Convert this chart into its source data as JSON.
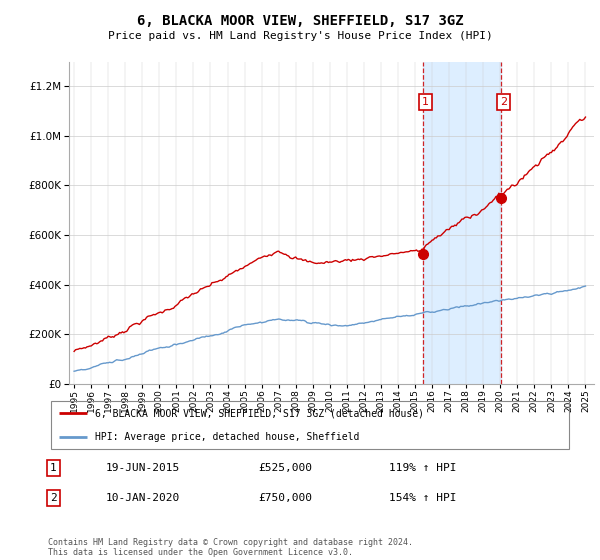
{
  "title": "6, BLACKA MOOR VIEW, SHEFFIELD, S17 3GZ",
  "subtitle": "Price paid vs. HM Land Registry's House Price Index (HPI)",
  "red_label": "6, BLACKA MOOR VIEW, SHEFFIELD, S17 3GZ (detached house)",
  "blue_label": "HPI: Average price, detached house, Sheffield",
  "transaction1_date": "19-JUN-2015",
  "transaction1_price": 525000,
  "transaction1_pct": "119% ↑ HPI",
  "transaction2_date": "10-JAN-2020",
  "transaction2_price": 750000,
  "transaction2_pct": "154% ↑ HPI",
  "footer": "Contains HM Land Registry data © Crown copyright and database right 2024.\nThis data is licensed under the Open Government Licence v3.0.",
  "red_color": "#cc0000",
  "blue_color": "#6699cc",
  "shade_color": "#ddeeff",
  "ylim_max": 1300000,
  "start_year": 1995,
  "end_year": 2025,
  "figwidth": 6.0,
  "figheight": 5.6,
  "dpi": 100
}
